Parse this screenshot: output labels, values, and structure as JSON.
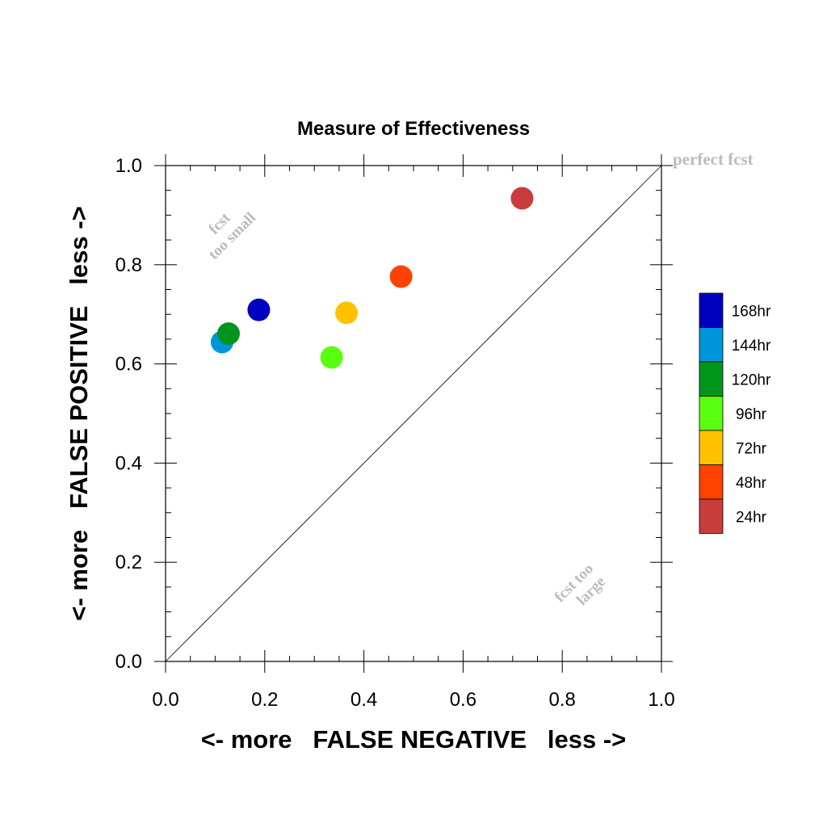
{
  "chart_data": {
    "type": "scatter",
    "title": "Measure of Effectiveness",
    "xlabel": "<- more   FALSE NEGATIVE   less ->",
    "ylabel": "<- more   FALSE POSITIVE   less ->",
    "xlim": [
      0.0,
      1.0
    ],
    "ylim": [
      0.0,
      1.0
    ],
    "xticks": [
      "0.0",
      "0.2",
      "0.4",
      "0.6",
      "0.8",
      "1.0"
    ],
    "yticks": [
      "0.0",
      "0.2",
      "0.4",
      "0.6",
      "0.8",
      "1.0"
    ],
    "grid": false,
    "legend_position": "right",
    "annotations": {
      "perfect": "perfect fcst",
      "small_line1": "fcst",
      "small_line2": "too small",
      "large_line1": "fcst too",
      "large_line2": "large"
    },
    "series": [
      {
        "name": "168hr",
        "color": "#0000c0",
        "x": 0.188,
        "y": 0.709
      },
      {
        "name": "144hr",
        "color": "#0096dc",
        "x": 0.114,
        "y": 0.644
      },
      {
        "name": "120hr",
        "color": "#00961e",
        "x": 0.127,
        "y": 0.661
      },
      {
        "name": "96hr",
        "color": "#5aff10",
        "x": 0.335,
        "y": 0.613
      },
      {
        "name": "72hr",
        "color": "#ffc200",
        "x": 0.365,
        "y": 0.703
      },
      {
        "name": "48hr",
        "color": "#ff4200",
        "x": 0.475,
        "y": 0.776
      },
      {
        "name": "24hr",
        "color": "#c83c3c",
        "x": 0.719,
        "y": 0.934
      }
    ]
  }
}
